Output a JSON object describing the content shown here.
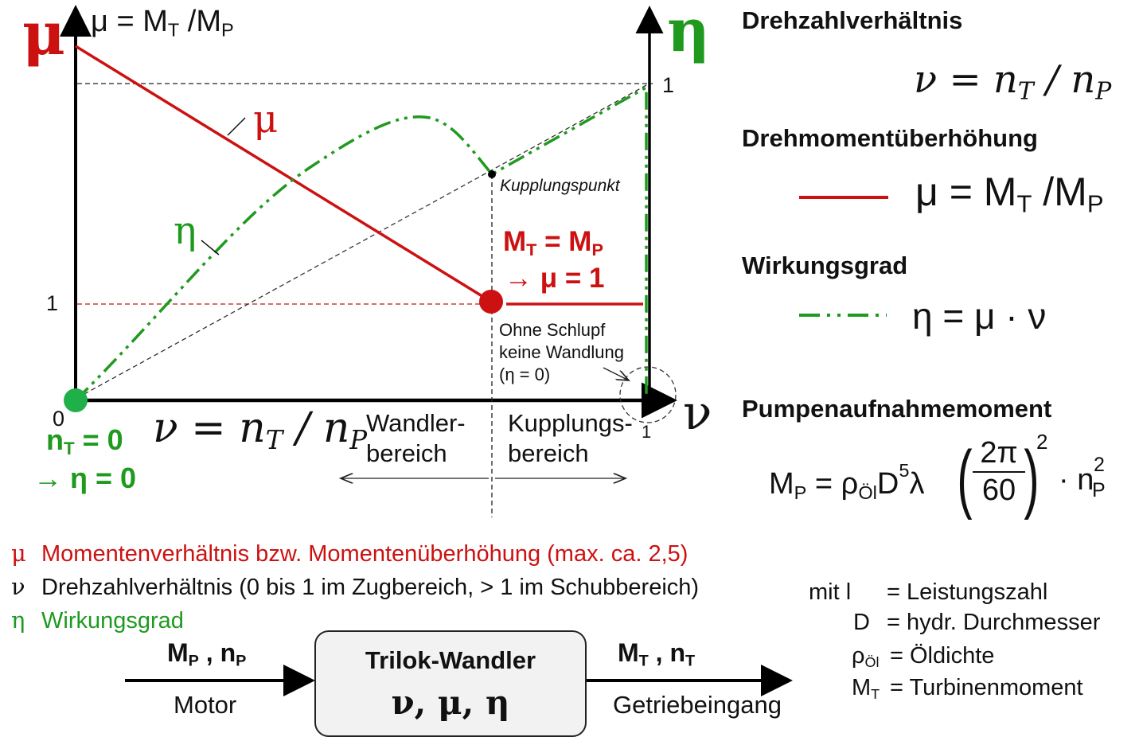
{
  "chart": {
    "mu_axis_symbol": "μ",
    "mu_axis_formula": "μ = M",
    "mu_axis_formula_sub_t": "T",
    "mu_axis_formula_mid": " /M",
    "mu_axis_formula_sub_p": "P",
    "eta_axis_symbol": "η",
    "nu_axis_symbol": "ν",
    "tick_one_right": "1",
    "tick_one_left": "1",
    "tick_zero": "0",
    "tick_one_bottom": "1",
    "curve_label_mu": "μ",
    "curve_label_eta": "η",
    "coupling_point_label": "Kupplungspunkt",
    "mt_eq_mp": "M",
    "mt_sub": "T",
    "mt_eq_mid": " = M",
    "mp_sub": "P",
    "arrow_mu_one": "→ μ = 1",
    "no_slip_line1": "Ohne Schlupf",
    "no_slip_line2": "keine Wandlung",
    "no_slip_line3": "(η = 0)",
    "nt_zero": "n",
    "nt_zero_sub": "T",
    "nt_zero_rest": " = 0",
    "eta_zero": "→ η = 0",
    "nu_formula_nu": "ν",
    "nu_formula_n": "n",
    "nu_formula_t": "T",
    "nu_formula_p": "P",
    "converter_range_line1": "Wandler-",
    "converter_range_line2": "bereich",
    "coupling_range_line1": "Kupplungs-",
    "coupling_range_line2": "bereich",
    "colors": {
      "mu": "#cc1111",
      "eta": "#1f9a1f",
      "axis": "#000000",
      "guide": "#333333"
    }
  },
  "right_panel": {
    "speed_ratio_heading": "Drehzahlverhältnis",
    "speed_ratio_nu": "ν",
    "speed_ratio_n": "n",
    "speed_ratio_t": "T",
    "speed_ratio_p": "P",
    "torque_heading": "Drehmomentüberhöhung",
    "torque_formula": "μ = M",
    "torque_formula_t": "T",
    "torque_formula_mid": " /M",
    "torque_formula_p": "P",
    "efficiency_heading": "Wirkungsgrad",
    "efficiency_formula": "η = μ · ν",
    "pump_heading": "Pumpenaufnahmemoment",
    "pump_m": "M",
    "pump_m_sub": "P",
    "pump_eq": " = ρ",
    "pump_rho_sub": "Öl",
    "pump_d": "D",
    "pump_d_sup": "5",
    "pump_lambda": "λ",
    "pump_frac_num": "2π",
    "pump_frac_den": "60",
    "pump_paren_sup": "2",
    "pump_dot": "· n",
    "pump_np_sup": "2",
    "pump_np_sub": "P"
  },
  "legend": {
    "mu_symbol": "μ",
    "mu_text": "Momentenverhältnis bzw. Momentenüberhöhung (max. ca. 2,5)",
    "nu_symbol": "ν",
    "nu_text": "Drehzahlverhältnis (0 bis 1 im Zugbereich, > 1 im Schubbereich)",
    "eta_symbol": "η",
    "eta_text": "Wirkungsgrad"
  },
  "definitions": {
    "mit": "mit l",
    "l_def": "= Leistungszahl",
    "d_sym": "D",
    "d_def": "= hydr. Durchmesser",
    "rho_sym": "ρ",
    "rho_sub": "Öl",
    "rho_def": "= Öldichte",
    "mt_sym": "M",
    "mt_sub": "T",
    "mt_def": "= Turbinenmoment"
  },
  "flow": {
    "input_label": "M",
    "input_sub_p": "P",
    "input_mid": " , n",
    "input_sub_p2": "P",
    "input_name": "Motor",
    "box_title": "Trilok-Wandler",
    "box_vars": "ν, μ, η",
    "output_label": "M",
    "output_sub_t": "T",
    "output_mid": " , n",
    "output_sub_t2": "T",
    "output_name": "Getriebeingang"
  }
}
